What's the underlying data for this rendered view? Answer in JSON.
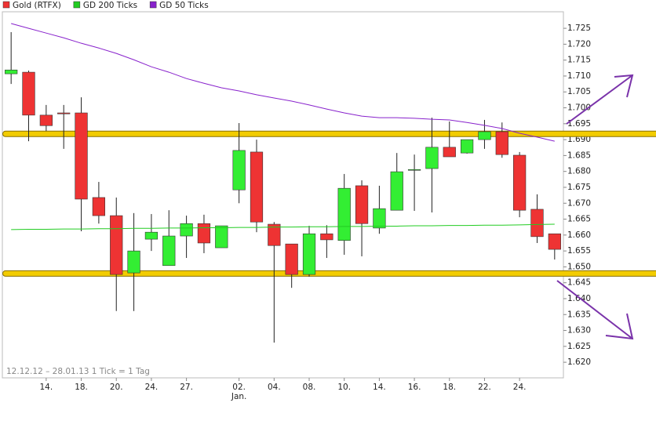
{
  "chart_data": {
    "type": "candlestick",
    "categories": [
      null,
      null,
      "14.",
      null,
      "18.",
      null,
      "20.",
      null,
      "24.",
      null,
      "27.",
      null,
      null,
      "02.",
      null,
      "04.",
      null,
      "08.",
      null,
      "10.",
      null,
      "14.",
      null,
      "16.",
      null,
      "18.",
      null,
      "22.",
      null,
      "24.",
      null,
      null
    ],
    "x_group_label": "Jan.",
    "footnote": "12.12.12 – 28.01.13   1 Tick = 1 Tag",
    "up_color": "#33ee33",
    "down_color": "#ee3333",
    "series": [
      {
        "name": "Gold (RTFX)",
        "color": "#ee3333",
        "open": [
          1.7107,
          1.7112,
          1.6977,
          1.6984,
          1.6984,
          1.6718,
          1.6661,
          1.6481,
          1.6587,
          1.6504,
          1.6597,
          1.6636,
          1.656,
          1.6742,
          1.6861,
          1.6634,
          1.6572,
          1.6476,
          1.6604,
          1.6583,
          1.6755,
          1.6622,
          1.6678,
          1.6804,
          1.6809,
          1.6876,
          1.6858,
          1.69,
          1.6925,
          1.6851,
          1.6681,
          1.6604
        ],
        "high": [
          1.7238,
          1.7117,
          1.7009,
          1.7009,
          1.7033,
          1.6767,
          1.6718,
          1.6669,
          1.6666,
          1.6678,
          1.6661,
          1.6664,
          1.6629,
          1.6952,
          1.69,
          1.6641,
          1.6572,
          1.6629,
          1.6631,
          1.6792,
          1.6772,
          1.6755,
          1.6858,
          1.6853,
          1.6969,
          1.6957,
          1.69,
          1.6962,
          1.6954,
          1.6861,
          1.6728,
          1.6604
        ],
        "low": [
          1.7075,
          1.6895,
          1.6927,
          1.6871,
          1.6612,
          1.6636,
          1.6361,
          1.6361,
          1.655,
          1.6504,
          1.6528,
          1.6543,
          1.656,
          1.67,
          1.6609,
          1.6262,
          1.6434,
          1.6469,
          1.6528,
          1.6538,
          1.6533,
          1.6604,
          1.6678,
          1.6676,
          1.6671,
          1.6846,
          1.6856,
          1.6871,
          1.6843,
          1.6656,
          1.6575,
          1.6523
        ],
        "close": [
          1.7119,
          1.6977,
          1.6944,
          1.6981,
          1.6713,
          1.6661,
          1.6476,
          1.655,
          1.6609,
          1.6597,
          1.6636,
          1.6575,
          1.6629,
          1.6866,
          1.6641,
          1.6567,
          1.6476,
          1.6604,
          1.6585,
          1.6747,
          1.6636,
          1.6683,
          1.6799,
          1.6806,
          1.6876,
          1.6846,
          1.69,
          1.6925,
          1.6853,
          1.6678,
          1.6595,
          1.6555
        ]
      },
      {
        "name": "GD 200 Ticks",
        "color": "#22cc22",
        "values": [
          1.6617,
          1.6618,
          1.6618,
          1.6619,
          1.6619,
          1.662,
          1.662,
          1.6621,
          1.6621,
          1.6622,
          1.6622,
          1.6623,
          1.6623,
          1.6624,
          1.6624,
          1.6625,
          1.6625,
          1.6626,
          1.6626,
          1.6627,
          1.6627,
          1.6628,
          1.6628,
          1.6629,
          1.6629,
          1.663,
          1.663,
          1.6631,
          1.6631,
          1.6632,
          1.6633,
          1.6634
        ]
      },
      {
        "name": "GD 50 Ticks",
        "color": "#8822cc",
        "values": [
          1.7265,
          1.725,
          1.7235,
          1.722,
          1.7203,
          1.7188,
          1.7171,
          1.7151,
          1.7129,
          1.7112,
          1.7092,
          1.7077,
          1.7063,
          1.7053,
          1.7041,
          1.7031,
          1.7021,
          1.7009,
          1.6996,
          1.6984,
          1.6974,
          1.6969,
          1.6969,
          1.6967,
          1.6964,
          1.6962,
          1.6954,
          1.6945,
          1.6935,
          1.692,
          1.6908,
          1.6895
        ]
      }
    ],
    "hlines": [
      1.6918,
      1.6479
    ],
    "hline_color": "#f2cc00",
    "ylim": [
      1.6151,
      1.7302
    ],
    "yticks": [
      {
        "value": 1.62,
        "label": "1.620"
      },
      1.625,
      {
        "value": 1.63,
        "label": "1.630"
      },
      1.635,
      {
        "value": 1.64,
        "label": "1.640"
      },
      1.645,
      {
        "value": 1.65,
        "label": "1.650"
      },
      1.655,
      {
        "value": 1.66,
        "label": "1.660"
      },
      1.665,
      {
        "value": 1.67,
        "label": "1.670"
      },
      1.675,
      {
        "value": 1.68,
        "label": "1.680"
      },
      1.685,
      {
        "value": 1.69,
        "label": "1.690"
      },
      1.695,
      {
        "value": 1.7,
        "label": "1.700"
      },
      1.705,
      {
        "value": 1.71,
        "label": "1.710"
      },
      1.715,
      {
        "value": 1.72,
        "label": "1.720"
      },
      1.725
    ]
  }
}
